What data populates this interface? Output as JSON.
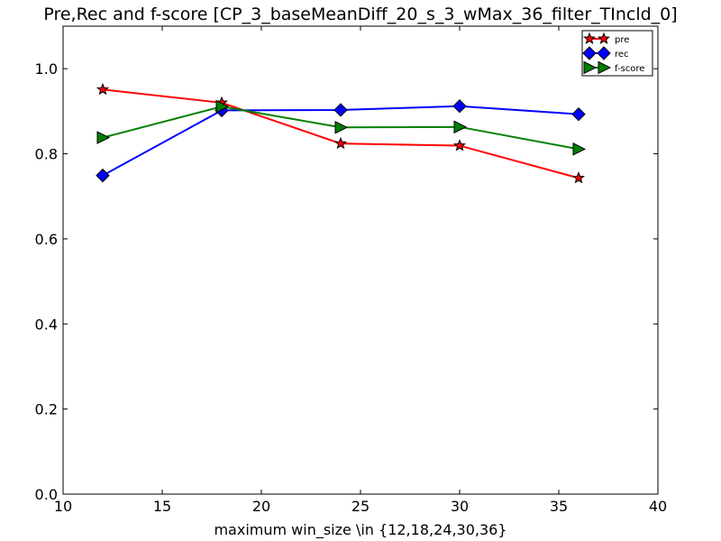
{
  "chart_data": {
    "type": "line",
    "title": "Pre,Rec and f-score [CP_3_baseMeanDiff_20_s_3_wMax_36_filter_TIncld_0]",
    "xlabel": "maximum win_size \\in {12,18,24,30,36}",
    "ylabel": "",
    "xlim": [
      10,
      40
    ],
    "ylim": [
      0.0,
      1.1
    ],
    "xticks": [
      10,
      15,
      20,
      25,
      30,
      35,
      40
    ],
    "yticks": [
      0.0,
      0.2,
      0.4,
      0.6,
      0.8,
      1.0
    ],
    "xtick_labels": [
      "10",
      "15",
      "20",
      "25",
      "30",
      "35",
      "40"
    ],
    "ytick_labels": [
      "0.0",
      "0.2",
      "0.4",
      "0.6",
      "0.8",
      "1.0"
    ],
    "grid": false,
    "legend_position": "top-right",
    "x": [
      12,
      18,
      24,
      30,
      36
    ],
    "series": [
      {
        "name": "pre",
        "color": "#ff0000",
        "marker": "star",
        "values": [
          0.951,
          0.92,
          0.824,
          0.819,
          0.743
        ]
      },
      {
        "name": "rec",
        "color": "#0000ff",
        "marker": "diamond",
        "values": [
          0.749,
          0.902,
          0.903,
          0.912,
          0.893
        ]
      },
      {
        "name": "f-score",
        "color": "#008000",
        "marker": "triangle-right",
        "values": [
          0.838,
          0.911,
          0.862,
          0.863,
          0.811
        ]
      }
    ]
  }
}
